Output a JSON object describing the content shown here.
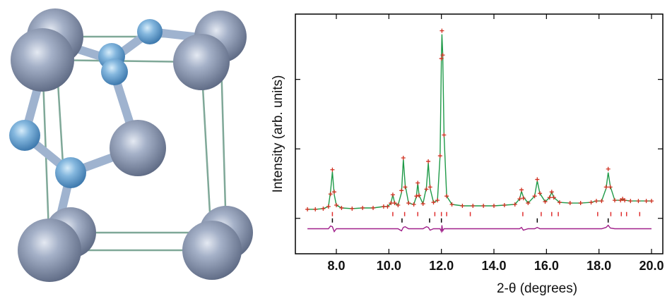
{
  "chart_data": {
    "type": "line",
    "x_label": "2-θ (degrees)",
    "y_label": "Intensity (arb. units)",
    "x": [
      6.9,
      7.2,
      7.5,
      7.7,
      7.78,
      7.85,
      7.92,
      8.0,
      8.2,
      8.6,
      9.0,
      9.4,
      9.8,
      9.95,
      10.08,
      10.15,
      10.22,
      10.35,
      10.48,
      10.55,
      10.62,
      10.75,
      10.95,
      11.05,
      11.1,
      11.15,
      11.3,
      11.43,
      11.5,
      11.57,
      11.7,
      11.85,
      11.95,
      12.0,
      12.02,
      12.05,
      12.1,
      12.2,
      12.4,
      12.8,
      13.2,
      13.6,
      14.0,
      14.4,
      14.8,
      14.98,
      15.05,
      15.12,
      15.3,
      15.55,
      15.65,
      15.75,
      15.95,
      16.12,
      16.2,
      16.28,
      16.5,
      16.9,
      17.3,
      17.7,
      17.9,
      18.1,
      18.27,
      18.35,
      18.43,
      18.6,
      18.82,
      18.9,
      18.98,
      19.2,
      19.5,
      19.8,
      20.0
    ],
    "series": [
      {
        "color": "#d03020",
        "marker": "plus",
        "values": [
          0.13,
          0.13,
          0.14,
          0.17,
          0.35,
          0.7,
          0.38,
          0.19,
          0.15,
          0.14,
          0.15,
          0.15,
          0.17,
          0.17,
          0.22,
          0.34,
          0.22,
          0.19,
          0.4,
          0.87,
          0.45,
          0.22,
          0.2,
          0.32,
          0.51,
          0.33,
          0.21,
          0.42,
          0.82,
          0.45,
          0.23,
          0.26,
          0.9,
          2.3,
          2.7,
          2.35,
          1.2,
          0.32,
          0.2,
          0.18,
          0.18,
          0.18,
          0.18,
          0.19,
          0.2,
          0.28,
          0.41,
          0.29,
          0.22,
          0.32,
          0.56,
          0.36,
          0.24,
          0.3,
          0.38,
          0.3,
          0.23,
          0.22,
          0.22,
          0.23,
          0.25,
          0.25,
          0.45,
          0.71,
          0.45,
          0.26,
          0.26,
          0.28,
          0.26,
          0.25,
          0.25,
          0.25,
          0.25
        ]
      },
      {
        "color": "#1f9a48",
        "marker": "line",
        "values": [
          0.13,
          0.13,
          0.14,
          0.17,
          0.39,
          0.67,
          0.34,
          0.19,
          0.15,
          0.14,
          0.15,
          0.15,
          0.17,
          0.17,
          0.22,
          0.34,
          0.22,
          0.19,
          0.37,
          0.85,
          0.48,
          0.22,
          0.2,
          0.32,
          0.51,
          0.33,
          0.21,
          0.45,
          0.8,
          0.43,
          0.23,
          0.26,
          0.9,
          2.34,
          2.65,
          2.38,
          1.2,
          0.32,
          0.2,
          0.18,
          0.18,
          0.18,
          0.18,
          0.19,
          0.2,
          0.28,
          0.39,
          0.31,
          0.22,
          0.32,
          0.54,
          0.36,
          0.24,
          0.3,
          0.38,
          0.3,
          0.23,
          0.22,
          0.22,
          0.23,
          0.25,
          0.25,
          0.43,
          0.66,
          0.46,
          0.26,
          0.26,
          0.28,
          0.26,
          0.25,
          0.25,
          0.25,
          0.25
        ]
      },
      {
        "color": "#a0208a",
        "marker": "line",
        "values": [
          -0.15,
          -0.15,
          -0.15,
          -0.15,
          -0.11,
          -0.12,
          -0.19,
          -0.15,
          -0.15,
          -0.15,
          -0.15,
          -0.15,
          -0.15,
          -0.15,
          -0.15,
          -0.15,
          -0.15,
          -0.15,
          -0.18,
          -0.13,
          -0.12,
          -0.15,
          -0.15,
          -0.15,
          -0.15,
          -0.15,
          -0.15,
          -0.12,
          -0.13,
          -0.17,
          -0.15,
          -0.15,
          -0.15,
          -0.19,
          -0.1,
          -0.18,
          -0.15,
          -0.15,
          -0.15,
          -0.15,
          -0.15,
          -0.15,
          -0.15,
          -0.15,
          -0.15,
          -0.15,
          -0.13,
          -0.17,
          -0.15,
          -0.15,
          -0.13,
          -0.15,
          -0.15,
          -0.15,
          -0.15,
          -0.15,
          -0.15,
          -0.15,
          -0.15,
          -0.15,
          -0.15,
          -0.15,
          -0.13,
          -0.1,
          -0.14,
          -0.15,
          -0.15,
          -0.15,
          -0.15,
          -0.15,
          -0.15,
          -0.15,
          -0.15
        ]
      }
    ],
    "reflections": [
      {
        "color": "#e03030",
        "x": [
          7.85,
          10.15,
          10.6,
          11.1,
          11.75,
          12.0,
          12.2,
          13.1,
          15.1,
          15.8,
          16.2,
          16.45,
          17.95,
          18.45,
          18.85,
          19.05,
          19.55
        ]
      },
      {
        "color": "#000000",
        "x": [
          7.85,
          10.5,
          11.55,
          12.0,
          15.65,
          18.35
        ]
      }
    ],
    "xlim": [
      6.44,
      20.43
    ],
    "ylim": [
      -0.51,
      2.94
    ],
    "xticks": [
      {
        "value": 8,
        "label": "8.0"
      },
      {
        "value": 10,
        "label": "10.0"
      },
      {
        "value": 12,
        "label": "12.0"
      },
      {
        "value": 14,
        "label": "14.0"
      },
      {
        "value": 16,
        "label": "16.0"
      },
      {
        "value": 18,
        "label": "18.0"
      },
      {
        "value": 20,
        "label": "20.0"
      }
    ],
    "yticks": [
      0,
      1,
      2
    ]
  }
}
